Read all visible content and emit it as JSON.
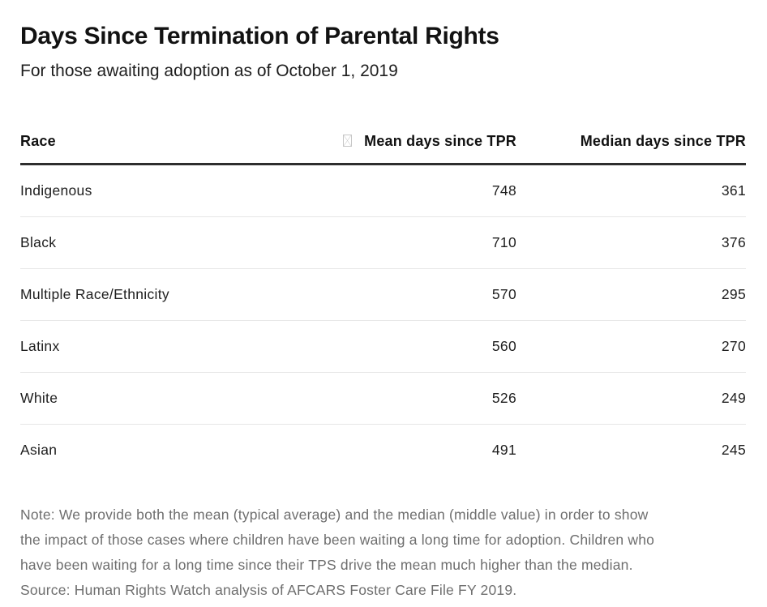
{
  "colors": {
    "background": "#ffffff",
    "title_text": "#121212",
    "body_text": "#1e1e1e",
    "note_text": "#6e6e6e",
    "heavy_rule": "#2e2e2e",
    "light_rule": "#e7e7e7",
    "missing_glyph_gray": "#c6c6c6"
  },
  "icons": {
    "mean_header_glyph": "missing-glyph-box"
  },
  "header": {
    "title": "Days Since Termination of Parental Rights",
    "subtitle": "For those awaiting adoption as of October 1, 2019"
  },
  "table": {
    "columns": [
      {
        "label": "Race",
        "align": "left"
      },
      {
        "label": "Mean days since TPR",
        "align": "right"
      },
      {
        "label": "Median days since TPR",
        "align": "right"
      }
    ],
    "rows": [
      {
        "race": "Indigenous",
        "mean": "748",
        "median": "361"
      },
      {
        "race": "Black",
        "mean": "710",
        "median": "376"
      },
      {
        "race": "Multiple Race/Ethnicity",
        "mean": "570",
        "median": "295"
      },
      {
        "race": "Latinx",
        "mean": "560",
        "median": "270"
      },
      {
        "race": "White",
        "mean": "526",
        "median": "249"
      },
      {
        "race": "Asian",
        "mean": "491",
        "median": "245"
      }
    ]
  },
  "note": {
    "lines": [
      "Note: We provide both the mean (typical average) and the median (middle value) in order to show",
      "the impact of those cases where children have been waiting a long time for adoption. Children who",
      "have been waiting for a long time since their TPS drive the mean much higher than the median.",
      "Source: Human Rights Watch analysis of AFCARS Foster Care File FY 2019."
    ]
  },
  "chart_data": {
    "type": "table",
    "title": "Days Since Termination of Parental Rights",
    "subtitle": "For those awaiting adoption as of October 1, 2019",
    "columns": [
      "Race",
      "Mean days since TPR",
      "Median days since TPR"
    ],
    "rows": [
      [
        "Indigenous",
        748,
        361
      ],
      [
        "Black",
        710,
        376
      ],
      [
        "Multiple Race/Ethnicity",
        570,
        295
      ],
      [
        "Latinx",
        560,
        270
      ],
      [
        "White",
        526,
        249
      ],
      [
        "Asian",
        491,
        245
      ]
    ],
    "note": "Note: We provide both the mean (typical average) and the median (middle value) in order to show the impact of those cases where children have been waiting a long time for adoption. Children who have been waiting for a long time since their TPS drive the mean much higher than the median.",
    "source": "Human Rights Watch analysis of AFCARS Foster Care File FY 2019"
  }
}
